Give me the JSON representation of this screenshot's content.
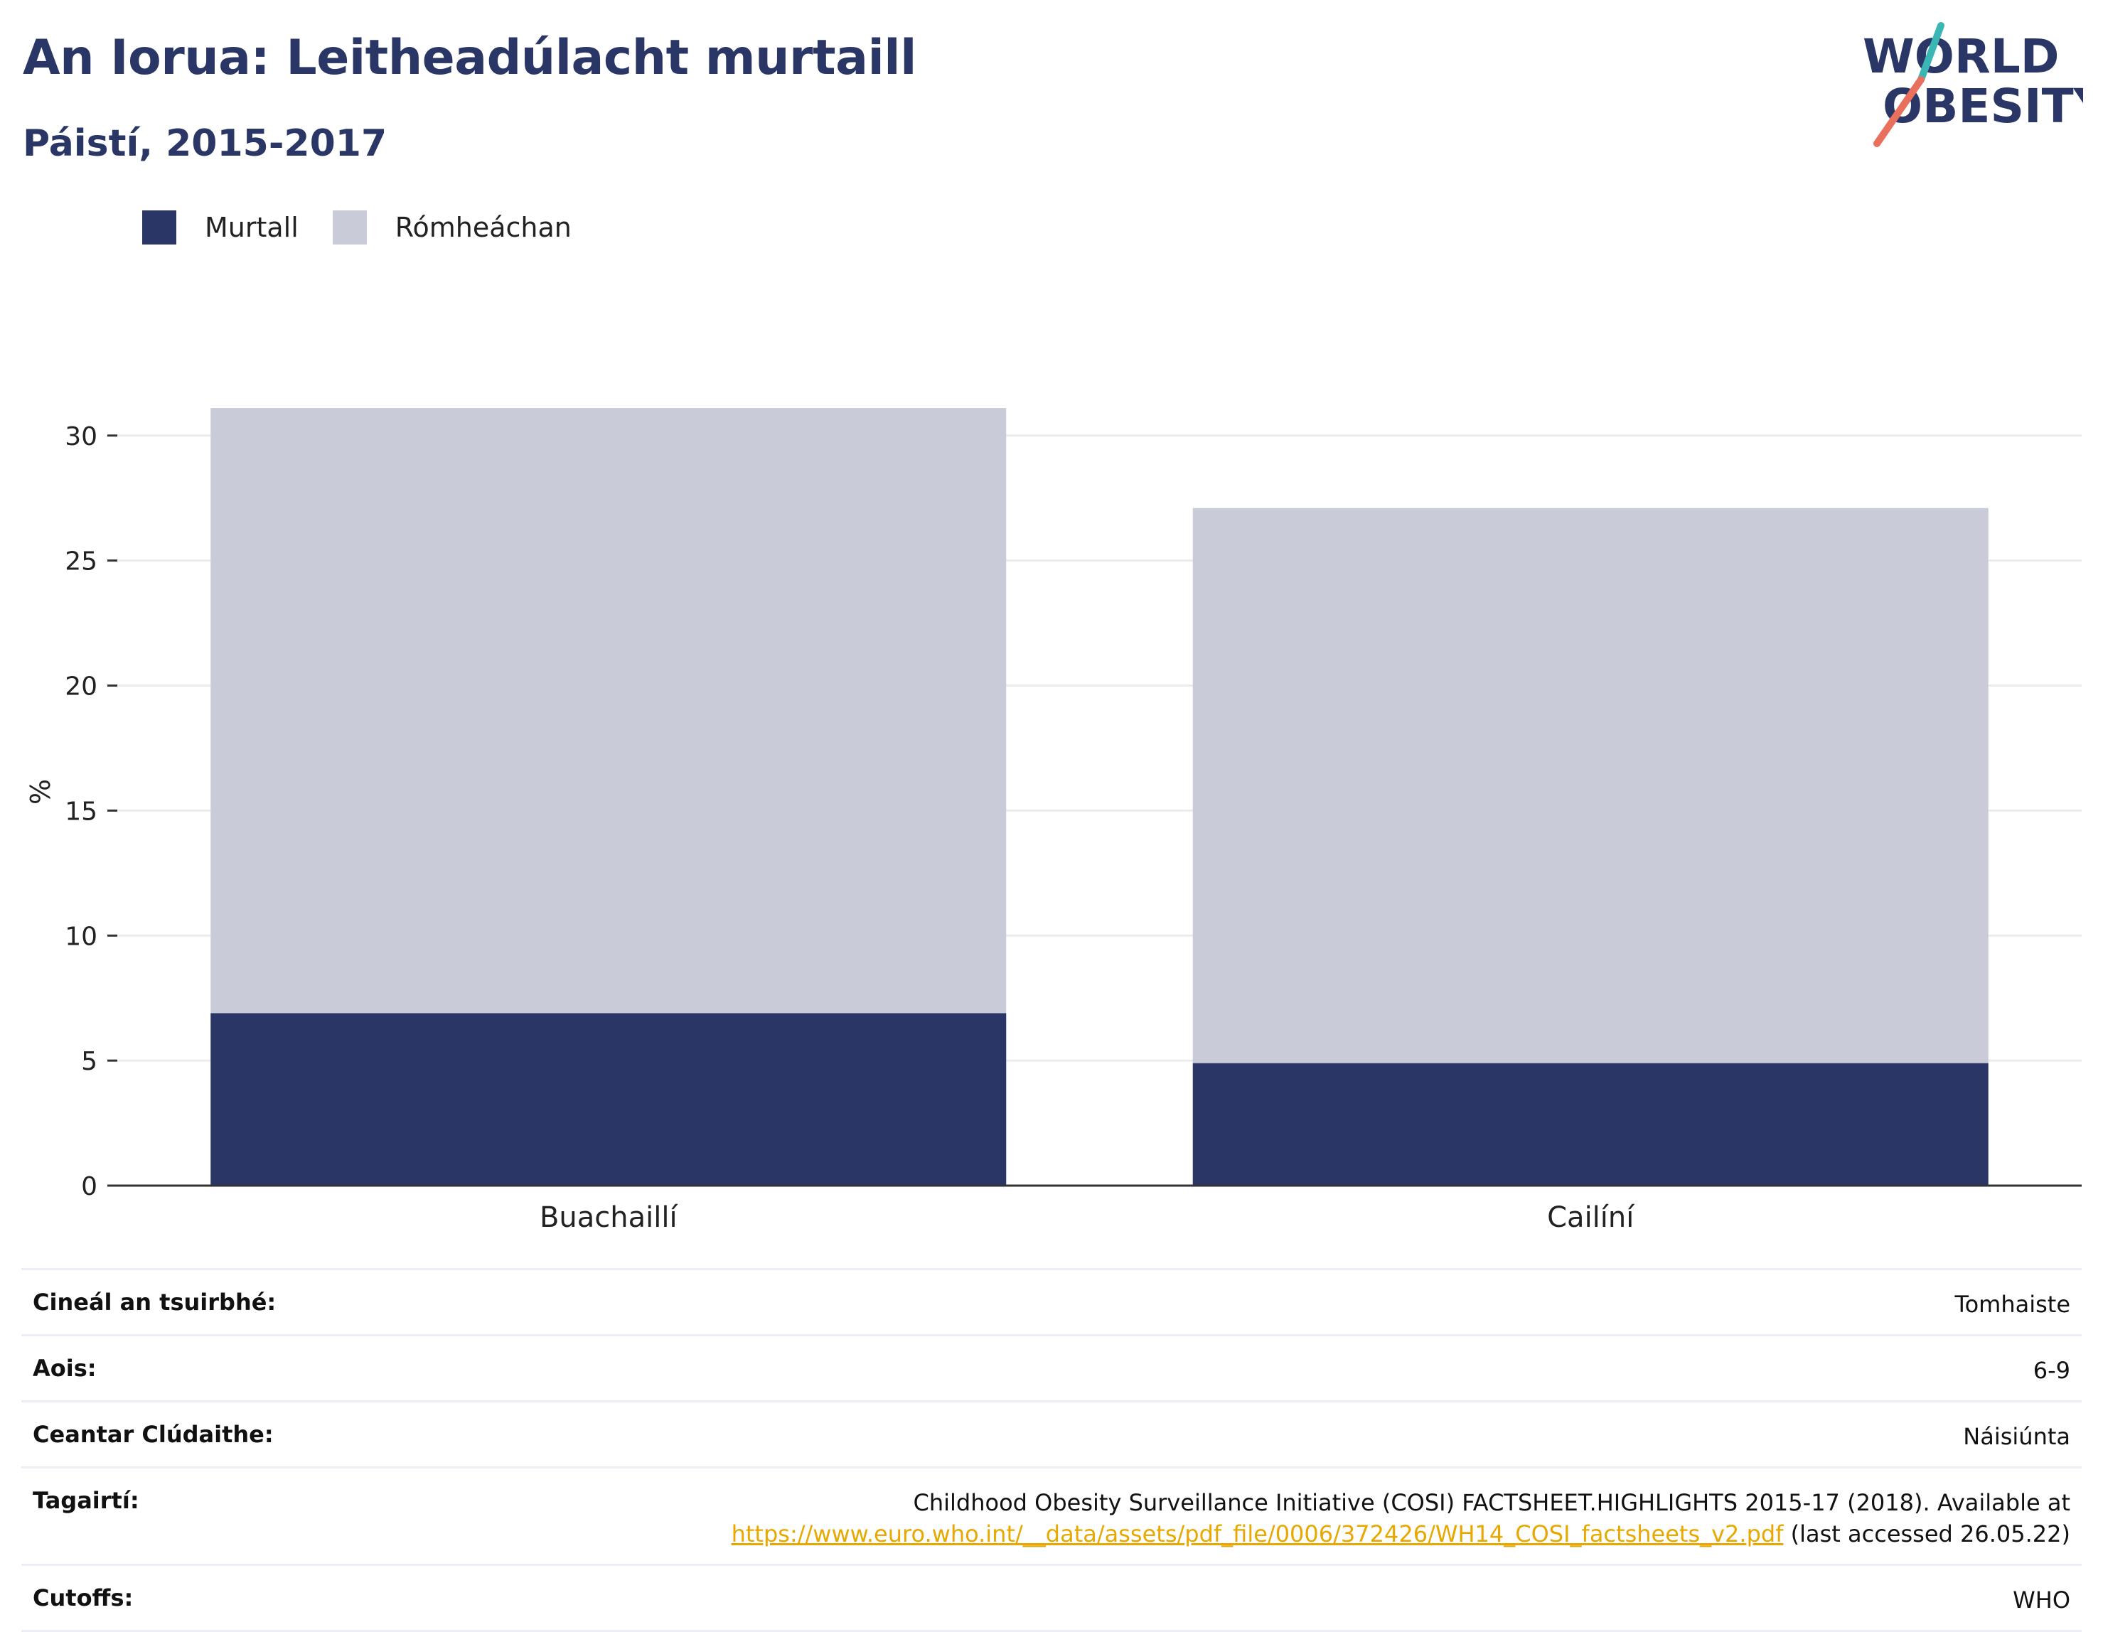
{
  "title": "An Iorua: Leitheadúlacht murtaill",
  "subtitle": "Páistí, 2015-2017",
  "logo": {
    "line1": "WORLD",
    "line2": "OBESITY"
  },
  "colors": {
    "obese": "#2a3665",
    "overweight": "#c9ccd8",
    "title": "#2a3665",
    "link": "#e8a800"
  },
  "legend": [
    {
      "label": "Murtall",
      "color": "#2a3665"
    },
    {
      "label": "Rómheáchan",
      "color": "#c9ccd8"
    }
  ],
  "chart_data": {
    "type": "bar",
    "stacked": true,
    "categories": [
      "Buachaillí",
      "Cailíní"
    ],
    "series": [
      {
        "name": "Murtall",
        "values": [
          6.9,
          4.9
        ]
      },
      {
        "name": "Rómheáchan",
        "values": [
          24.2,
          22.2
        ]
      }
    ],
    "ylabel": "%",
    "ylim": [
      0,
      31.5
    ],
    "yticks": [
      0,
      5,
      10,
      15,
      20,
      25,
      30
    ],
    "grid": true,
    "legend_position": "top-left"
  },
  "meta": [
    {
      "label": "Cineál an tsuirbhé:",
      "value": "Tomhaiste"
    },
    {
      "label": "Aois:",
      "value": "6-9"
    },
    {
      "label": "Ceantar Clúdaithe:",
      "value": "Náisiúnta"
    },
    {
      "label": "Tagairtí:",
      "value_line1": "Childhood Obesity Surveillance Initiative (COSI) FACTSHEET.HIGHLIGHTS 2015-17 (2018). Available at",
      "link": "https://www.euro.who.int/__data/assets/pdf_file/0006/372426/WH14_COSI_factsheets_v2.pdf",
      "value_after_link": " (last accessed 26.05.22)"
    },
    {
      "label": "Cutoffs:",
      "value": "WHO"
    }
  ]
}
